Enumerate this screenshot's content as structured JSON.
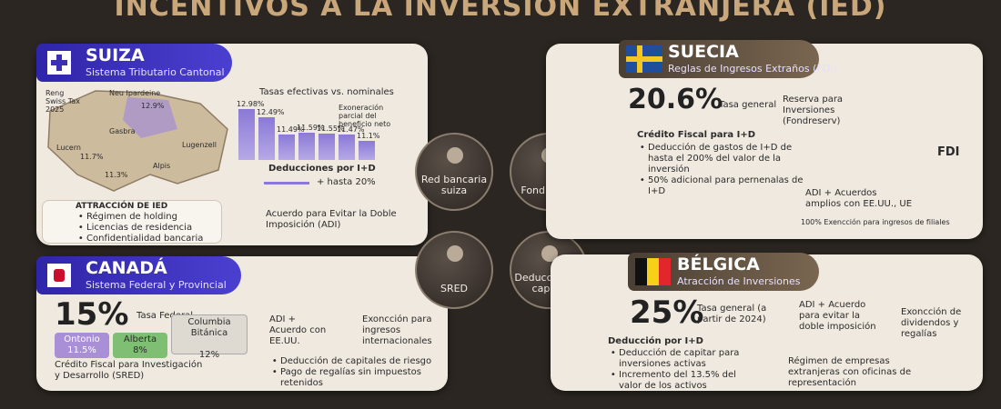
{
  "header": {
    "title": "INCENTIVOS A LA INVERSIÓN EXTRANJERA (IED)"
  },
  "suiza": {
    "name": "SUIZA",
    "subtitle": "Sistema Tributario Cantonal",
    "map_labels": [
      "Reng Swiss Tax 2025",
      "Neu Ipardeine",
      "12.9%",
      "Gasbra",
      "11.7%",
      "Lucern",
      "11.3%",
      "Lugenzell",
      "Alpis"
    ],
    "chart": {
      "title": "Tasas efectivas vs. nominales",
      "bars": [
        {
          "value": 12.98,
          "label": "12.98%"
        },
        {
          "value": 12.49,
          "label": "12.49%"
        },
        {
          "value": 11.49,
          "label": "11.49%"
        },
        {
          "value": 11.59,
          "label": "11.59%"
        },
        {
          "value": 11.55,
          "label": "11.55%"
        },
        {
          "value": 11.47,
          "label": "11.47%"
        },
        {
          "value": 11.1,
          "label": "11.1%"
        }
      ],
      "note": "Exoneración parcial del beneficio neto",
      "caption": "Deducciones por I+D",
      "arrow_text": "+ hasta 20%"
    },
    "attraction": {
      "title": "ATTRACCIÓN DE IED",
      "items": [
        "Régimen de holding",
        "Licencias de residencia",
        "Confidentialidad bancaria"
      ]
    },
    "adi": "Acuerdo para Evitar la Doble Imposición (ADI)"
  },
  "canada": {
    "name": "CANADÁ",
    "subtitle": "Sistema Federal y Provincial",
    "rate": "15%",
    "rate_label": "Tasa Federal",
    "provinces": [
      {
        "name": "Ontonio",
        "rate": "11.5%"
      },
      {
        "name": "Alberta",
        "rate": "8%"
      },
      {
        "name": "Columbia Bitánica",
        "rate": "12%"
      }
    ],
    "credit": "Crédito Fiscal para Investigación y Desarrollo (SRED)",
    "adi": "ADI + Acuerdo con EE.UU.",
    "exemption": "Exoncción para ingresos internacionales",
    "items": [
      "Deducción de capitales de riesgo",
      "Pago de regalías sin impuestos retenidos"
    ]
  },
  "suecia": {
    "name": "SUECIA",
    "subtitle": "Reglas de Ingresos Extraños (FDI)",
    "rate": "20.6%",
    "rate_label": "Tasa general",
    "reserve": "Reserva para Inversiones (Fondreserv)",
    "credit_title": "Crédito Fiscal para I+D",
    "items": [
      "Deducción de gastos de I+D de hasta el 200% del valor de la inversión",
      "50% adicional para pernenalas de I+D"
    ],
    "fdi": "FDI",
    "adi": "ADI + Acuerdos amplios con EE.UU., UE",
    "exemption": "100% Exencción para ingresos de filiales"
  },
  "belgica": {
    "name": "BÉLGICA",
    "subtitle": "Atracción de Inversiones",
    "rate": "25%",
    "rate_label": "Tasa general (a partir de 2024)",
    "adi": "ADI + Acuerdo para evitar la doble imposición",
    "exemption": "Exoncción de dividendos y regalías",
    "deduction_title": "Deducción por I+D",
    "items": [
      "Deducción de capitar para inversiones activas",
      "Incremento del 13.5% del valor de los activos"
    ],
    "regime": "Régimen de empresas extranjeras con oficinas de representación"
  },
  "center": [
    "Red bancaria suiza",
    "Fondreserv",
    "SRED",
    "Deducción de capital"
  ]
}
